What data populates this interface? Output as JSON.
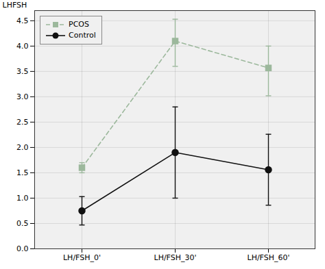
{
  "chart_data": {
    "type": "line",
    "categories": [
      "LH/FSH_0'",
      "LH/FSH_30'",
      "LH/FSH_60'"
    ],
    "series": [
      {
        "name": "PCOS",
        "color": "#9cb89c",
        "marker": "square",
        "line_style": "dashed",
        "values": [
          1.6,
          4.1,
          3.57
        ],
        "yerr_lower": [
          0.1,
          0.5,
          0.55
        ],
        "yerr_upper": [
          0.1,
          0.43,
          0.43
        ]
      },
      {
        "name": "Control",
        "color": "#111111",
        "marker": "circle",
        "line_style": "solid",
        "values": [
          0.75,
          1.9,
          1.56
        ],
        "yerr_lower": [
          0.28,
          0.9,
          0.7
        ],
        "yerr_upper": [
          0.28,
          0.9,
          0.7
        ]
      }
    ],
    "ylabel": "LHFSH",
    "ylim": [
      0.0,
      4.7
    ],
    "yticks": [
      {
        "value": 0.0,
        "label": "0.0"
      },
      0.5,
      {
        "value": 1.0,
        "label": "1.0"
      },
      1.5,
      {
        "value": 2.0,
        "label": "2.0"
      },
      2.5,
      {
        "value": 3.0,
        "label": "3.0"
      },
      3.5,
      {
        "value": 4.0,
        "label": "4.0"
      },
      4.5
    ],
    "grid": true,
    "legend": "upper left"
  }
}
